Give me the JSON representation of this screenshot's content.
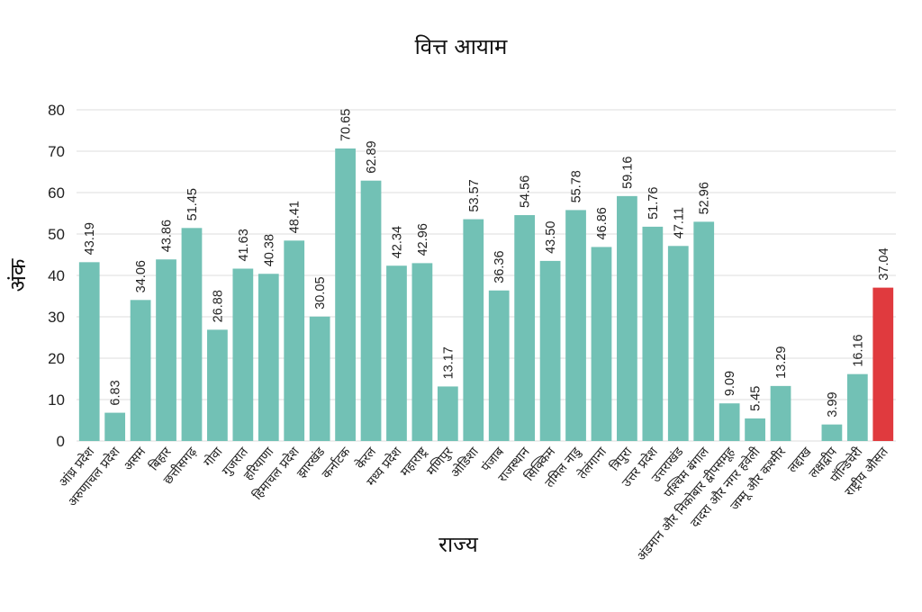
{
  "chart_data": {
    "type": "bar",
    "title": "वित्त आयाम",
    "xlabel": "राज्य",
    "ylabel": "अंक",
    "ylim": [
      0,
      80
    ],
    "yticks": [
      0,
      10,
      20,
      30,
      40,
      50,
      60,
      70,
      80
    ],
    "grid": true,
    "colors": {
      "bar": "#72c1b5",
      "highlight": "#e03a3e"
    },
    "highlight_category": "राष्ट्रीय औसत",
    "categories": [
      "आंध्र प्रदेश",
      "अरुणाचल प्रदेश",
      "असम",
      "बिहार",
      "छत्तीसगढ़",
      "गोवा",
      "गुजरात",
      "हरियाणा",
      "हिमाचल प्रदेश",
      "झारखंड",
      "कर्नाटक",
      "केरल",
      "मध्य प्रदेश",
      "महाराष्ट्र",
      "मणिपुर",
      "ओडिशा",
      "पंजाब",
      "राजस्थान",
      "सिक्किम",
      "तमिल नाडु",
      "तेलंगाना",
      "त्रिपुरा",
      "उत्तर प्रदेश",
      "उत्तराखंड",
      "पश्चिम बंगाल",
      "अंडमान और निकोबार द्वीपसमूह",
      "दादरा और नगर हवेली",
      "जम्मू और कश्मीर",
      "लद्दाख",
      "लक्षद्वीप",
      "पॉन्डिचेरी",
      "राष्ट्रीय औसत"
    ],
    "values": [
      43.19,
      6.83,
      34.06,
      43.86,
      51.45,
      26.88,
      41.63,
      40.38,
      48.41,
      30.05,
      70.65,
      62.89,
      42.34,
      42.96,
      13.17,
      53.57,
      36.36,
      54.56,
      43.5,
      55.78,
      46.86,
      59.16,
      51.76,
      47.11,
      52.96,
      9.09,
      5.45,
      13.29,
      null,
      3.99,
      16.16,
      37.04
    ],
    "value_labels": [
      "43.19",
      "6.83",
      "34.06",
      "43.86",
      "51.45",
      "26.88",
      "41.63",
      "40.38",
      "48.41",
      "30.05",
      "70.65",
      "62.89",
      "42.34",
      "42.96",
      "13.17",
      "53.57",
      "36.36",
      "54.56",
      "43.50",
      "55.78",
      "46.86",
      "59.16",
      "51.76",
      "47.11",
      "52.96",
      "9.09",
      "5.45",
      "13.29",
      "",
      "3.99",
      "16.16",
      "37.04"
    ]
  }
}
